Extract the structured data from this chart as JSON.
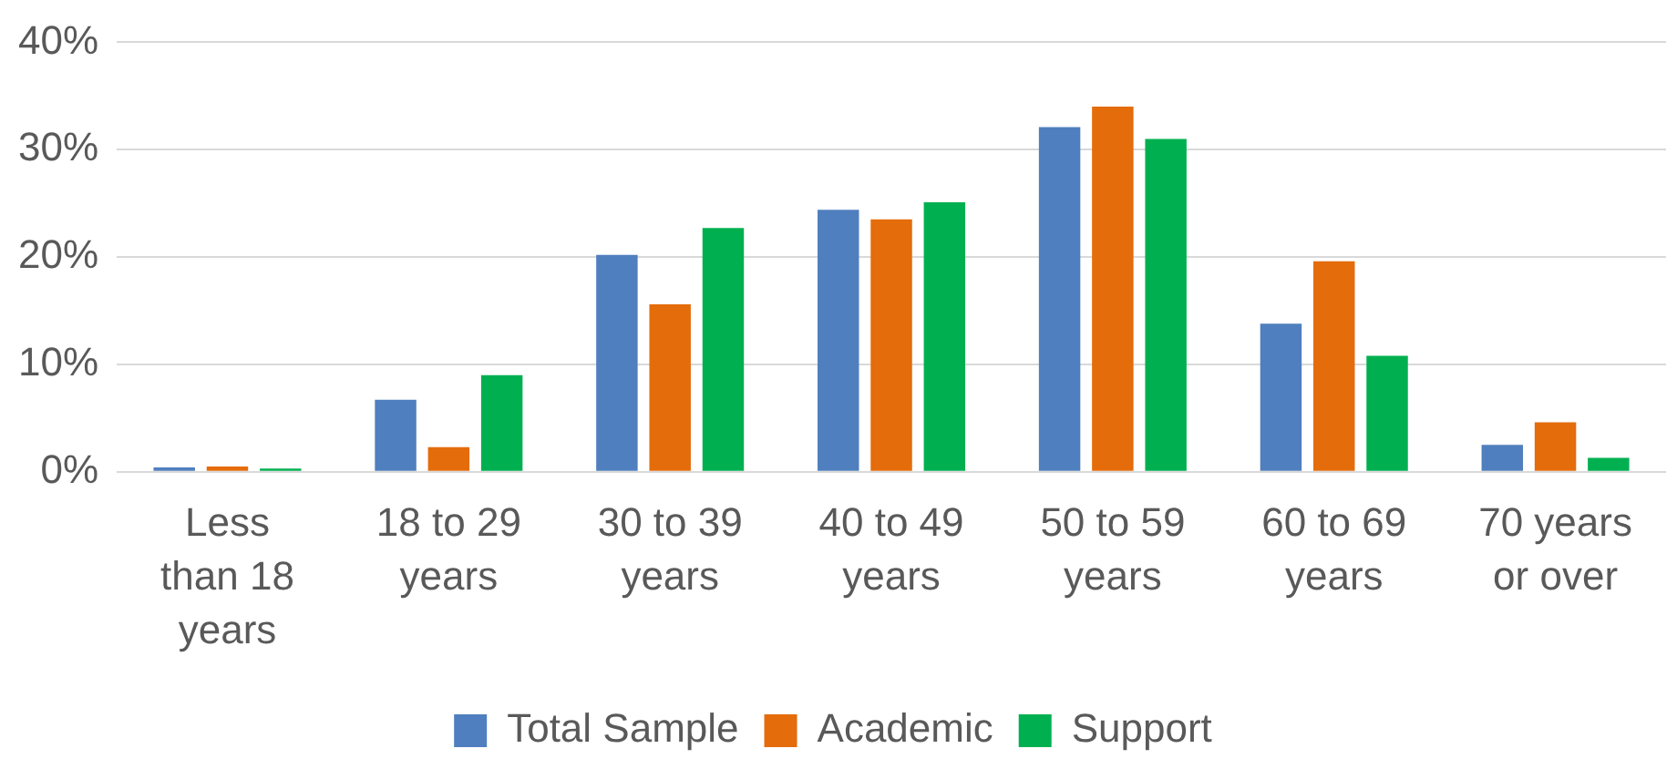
{
  "chart_data": {
    "type": "bar",
    "categories": [
      "Less than 18 years",
      "18 to 29 years",
      "30 to 39 years",
      "40 to 49 years",
      "50 to 59 years",
      "60 to 69 years",
      "70 years or over"
    ],
    "series": [
      {
        "name": "Total Sample",
        "color": "#4f7fbe",
        "values": [
          0.4,
          6.7,
          20.2,
          24.4,
          32.1,
          13.8,
          2.5
        ]
      },
      {
        "name": "Academic",
        "color": "#e46c0a",
        "values": [
          0.5,
          2.3,
          15.6,
          23.5,
          34.0,
          19.6,
          4.6
        ]
      },
      {
        "name": "Support",
        "color": "#00b050",
        "values": [
          0.3,
          9.0,
          22.7,
          25.1,
          31.0,
          10.8,
          1.3
        ]
      }
    ],
    "ylim": [
      0,
      40
    ],
    "yticks": [
      {
        "value": 0,
        "label": "0%"
      },
      {
        "value": 10,
        "label": "10%"
      },
      {
        "value": 20,
        "label": "20%"
      },
      {
        "value": 30,
        "label": "30%"
      },
      {
        "value": 40,
        "label": "40%"
      }
    ],
    "grid": "y",
    "legend": "bottom"
  }
}
